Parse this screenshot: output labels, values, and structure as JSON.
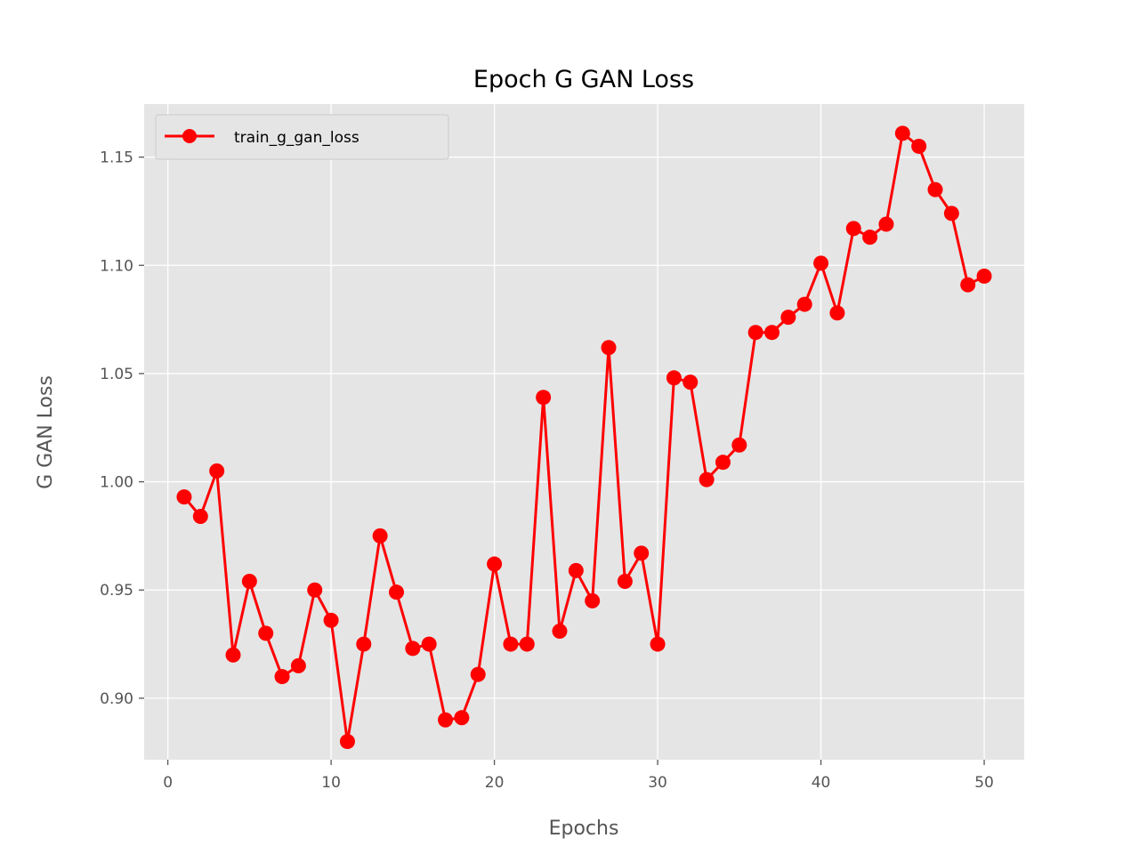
{
  "chart_data": {
    "type": "line",
    "title": "Epoch G GAN Loss",
    "xlabel": "Epochs",
    "ylabel": "G GAN Loss",
    "xlim": [
      -1.45,
      52.45
    ],
    "ylim": [
      0.8716,
      1.1745
    ],
    "xticks": [
      0,
      10,
      20,
      30,
      40,
      50
    ],
    "yticks": [
      0.9,
      0.95,
      1.0,
      1.05,
      1.1,
      1.15
    ],
    "xtick_labels": [
      "0",
      "10",
      "20",
      "30",
      "40",
      "50"
    ],
    "ytick_labels": [
      "0.90",
      "0.95",
      "1.00",
      "1.05",
      "1.10",
      "1.15"
    ],
    "grid": true,
    "legend_position": "top-left",
    "series": [
      {
        "name": "train_g_gan_loss",
        "color": "#ff0000",
        "marker": "circle",
        "x": [
          1,
          2,
          3,
          4,
          5,
          6,
          7,
          8,
          9,
          10,
          11,
          12,
          13,
          14,
          15,
          16,
          17,
          18,
          19,
          20,
          21,
          22,
          23,
          24,
          25,
          26,
          27,
          28,
          29,
          30,
          31,
          32,
          33,
          34,
          35,
          36,
          37,
          38,
          39,
          40,
          41,
          42,
          43,
          44,
          45,
          46,
          47,
          48,
          49,
          50
        ],
        "y": [
          0.993,
          0.984,
          1.005,
          0.92,
          0.954,
          0.93,
          0.91,
          0.915,
          0.95,
          0.936,
          0.88,
          0.925,
          0.975,
          0.949,
          0.923,
          0.925,
          0.89,
          0.891,
          0.911,
          0.962,
          0.925,
          0.925,
          1.039,
          0.931,
          0.959,
          0.945,
          1.062,
          0.954,
          0.967,
          0.925,
          1.048,
          1.046,
          1.001,
          1.009,
          1.017,
          1.069,
          1.069,
          1.076,
          1.082,
          1.101,
          1.078,
          1.117,
          1.113,
          1.119,
          1.161,
          1.155,
          1.135,
          1.124,
          1.091,
          1.095
        ]
      }
    ]
  },
  "style": {
    "plot_background": "#e5e5e5",
    "grid_color": "#ffffff",
    "text_color": "#555555"
  }
}
